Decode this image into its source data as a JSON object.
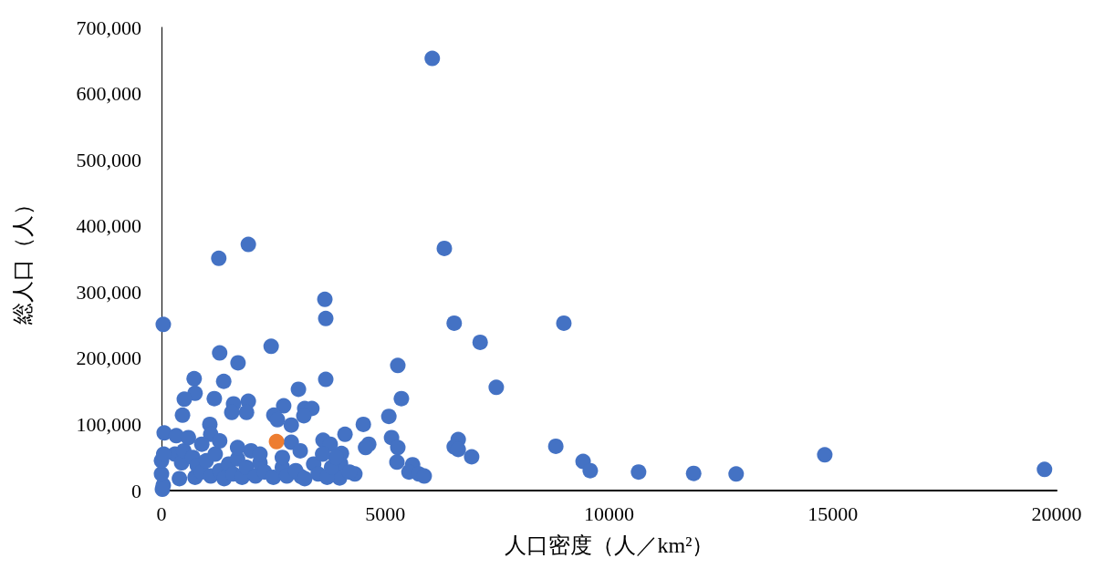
{
  "chart_data": {
    "type": "scatter",
    "xlabel": "人口密度（人／km²）",
    "ylabel": "総人口（人）",
    "xlim": [
      0,
      20000
    ],
    "xticks": [
      0,
      5000,
      10000,
      15000,
      20000
    ],
    "ylim": [
      0,
      700000
    ],
    "yticks": [
      {
        "value": 0,
        "label": "0"
      },
      {
        "value": 100000,
        "label": "100,000"
      },
      {
        "value": 200000,
        "label": "200,000"
      },
      {
        "value": 300000,
        "label": "300,000"
      },
      {
        "value": 400000,
        "label": "400,000"
      },
      {
        "value": 500000,
        "label": "500,000"
      },
      {
        "value": 600000,
        "label": "600,000"
      },
      {
        "value": 700000,
        "label": "700,000"
      }
    ],
    "grid": false,
    "marker": "circle",
    "series": [
      {
        "color": "#4472c4",
        "x": [
          6050,
          6320,
          1280,
          1940,
          40,
          3650,
          3670,
          6540,
          8990,
          7120,
          2450,
          1300,
          1710,
          5280,
          1390,
          3670,
          730,
          7480,
          3060,
          5360,
          750,
          510,
          1180,
          1940,
          1610,
          2730,
          3200,
          3360,
          3180,
          1900,
          1570,
          470,
          2510,
          2590,
          5080,
          2900,
          4510,
          1080,
          60,
          330,
          4100,
          5140,
          6630,
          6540,
          6630,
          4630,
          4560,
          5280,
          8810,
          3610,
          3770,
          2900,
          6930,
          9420,
          9580,
          5260,
          5610,
          5530,
          5750,
          5870,
          10660,
          11890,
          12840,
          14820,
          19730,
          4320,
          3980,
          4000,
          4020,
          3120,
          20,
          40,
          300,
          400,
          450,
          500,
          700,
          750,
          800,
          900,
          1000,
          1100,
          1200,
          1300,
          1400,
          1500,
          1600,
          1700,
          1800,
          1900,
          2000,
          2100,
          2200,
          2300,
          2500,
          2700,
          2800,
          3000,
          3200,
          3400,
          3500,
          3700,
          3800,
          3900,
          4200,
          1100,
          900,
          600,
          1300,
          1700,
          2200,
          2700,
          3100,
          3600,
          0,
          0,
          50
        ],
        "values": [
          653000,
          366000,
          351000,
          372000,
          251000,
          289000,
          260000,
          253000,
          253000,
          224000,
          218000,
          208000,
          193000,
          189000,
          165000,
          168000,
          169000,
          156000,
          153000,
          139000,
          147000,
          138000,
          139000,
          135000,
          131000,
          128000,
          124000,
          124000,
          113000,
          118000,
          118000,
          114000,
          114000,
          107000,
          112000,
          99000,
          100000,
          100000,
          87000,
          83000,
          85000,
          80000,
          77000,
          66000,
          62000,
          70000,
          65000,
          65000,
          67000,
          76000,
          70000,
          73000,
          51000,
          44000,
          30000,
          43000,
          39000,
          28000,
          25000,
          22000,
          28000,
          26000,
          25000,
          54000,
          32000,
          25000,
          19000,
          41000,
          56000,
          21000,
          2000,
          8000,
          55000,
          18000,
          42000,
          60000,
          50000,
          20000,
          38000,
          28000,
          45000,
          22000,
          55000,
          30000,
          18000,
          40000,
          25000,
          48000,
          20000,
          35000,
          60000,
          22000,
          42000,
          28000,
          20000,
          35000,
          22000,
          30000,
          18000,
          40000,
          25000,
          20000,
          35000,
          50000,
          28000,
          85000,
          70000,
          80000,
          75000,
          65000,
          55000,
          50000,
          60000,
          55000,
          25000,
          45000,
          55000
        ]
      },
      {
        "color": "#ed7d31",
        "x": [
          2570
        ],
        "values": [
          74000
        ]
      }
    ]
  }
}
